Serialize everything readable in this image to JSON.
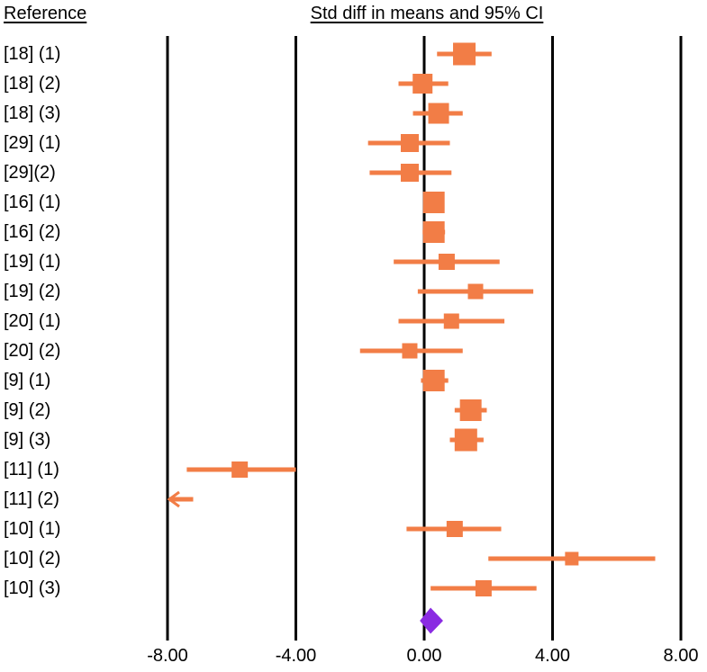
{
  "headers": {
    "reference": "Reference",
    "effect": "Std diff in means and 95% CI"
  },
  "colors": {
    "study": "#f27d46",
    "summary": "#8a2be2",
    "axis": "#000000"
  },
  "chart_data": {
    "type": "forest",
    "xlabel": "Std diff in means and 95% CI",
    "xlim": [
      -8.0,
      8.0
    ],
    "ticks": [
      -8.0,
      -4.0,
      0.0,
      4.0,
      8.0
    ],
    "tick_labels": [
      "-8.00",
      "-4.00",
      "0.00",
      "4.00",
      "8.00"
    ],
    "studies": [
      {
        "label": "[18] (1)",
        "estimate": 1.25,
        "lower": 0.4,
        "upper": 2.1,
        "weight": 1.25
      },
      {
        "label": "[18] (2)",
        "estimate": -0.05,
        "lower": -0.8,
        "upper": 0.75,
        "weight": 1.1
      },
      {
        "label": "[18] (3)",
        "estimate": 0.45,
        "lower": -0.35,
        "upper": 1.2,
        "weight": 1.15
      },
      {
        "label": "[29] (1)",
        "estimate": -0.45,
        "lower": -1.75,
        "upper": 0.8,
        "weight": 1.0
      },
      {
        "label": "[29](2)",
        "estimate": -0.45,
        "lower": -1.7,
        "upper": 0.85,
        "weight": 1.0
      },
      {
        "label": "[16] (1)",
        "estimate": 0.3,
        "lower": 0.0,
        "upper": 0.6,
        "weight": 1.2
      },
      {
        "label": "[16] (2)",
        "estimate": 0.3,
        "lower": -0.05,
        "upper": 0.65,
        "weight": 1.2
      },
      {
        "label": "[19] (1)",
        "estimate": 0.7,
        "lower": -0.95,
        "upper": 2.35,
        "weight": 0.9
      },
      {
        "label": "[19] (2)",
        "estimate": 1.6,
        "lower": -0.2,
        "upper": 3.4,
        "weight": 0.85
      },
      {
        "label": "[20] (1)",
        "estimate": 0.85,
        "lower": -0.8,
        "upper": 2.5,
        "weight": 0.85
      },
      {
        "label": "[20] (2)",
        "estimate": -0.45,
        "lower": -2.0,
        "upper": 1.2,
        "weight": 0.85
      },
      {
        "label": "[9] (1)",
        "estimate": 0.3,
        "lower": -0.1,
        "upper": 0.75,
        "weight": 1.2
      },
      {
        "label": "[9] (2)",
        "estimate": 1.45,
        "lower": 0.95,
        "upper": 1.95,
        "weight": 1.2
      },
      {
        "label": "[9] (3)",
        "estimate": 1.3,
        "lower": 0.8,
        "upper": 1.85,
        "weight": 1.25
      },
      {
        "label": "[11] (1)",
        "estimate": -5.75,
        "lower": -7.4,
        "upper": -4.0,
        "weight": 0.9
      },
      {
        "label": "[11] (2)",
        "estimate": -7.5,
        "lower": -8.0,
        "upper": -7.2,
        "weight": 0,
        "truncated_left": true
      },
      {
        "label": "[10] (1)",
        "estimate": 0.95,
        "lower": -0.55,
        "upper": 2.4,
        "weight": 0.9
      },
      {
        "label": "[10] (2)",
        "estimate": 4.6,
        "lower": 2.0,
        "upper": 7.2,
        "weight": 0.75
      },
      {
        "label": "[10] (3)",
        "estimate": 1.85,
        "lower": 0.2,
        "upper": 3.5,
        "weight": 0.9
      }
    ],
    "summary": {
      "estimate": 0.2,
      "lower": -0.1,
      "upper": 0.55
    }
  }
}
